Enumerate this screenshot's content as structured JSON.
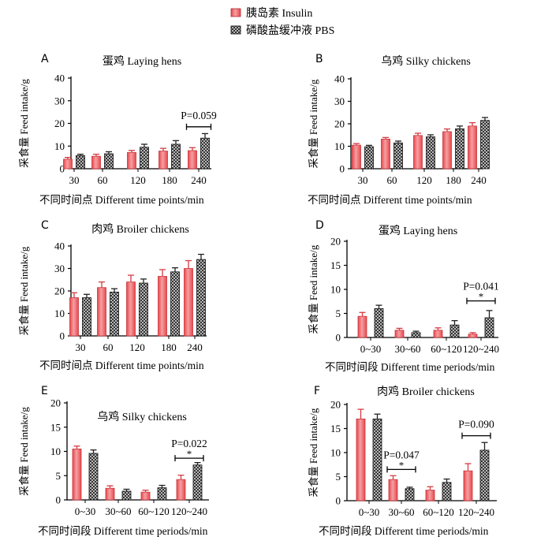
{
  "legend": {
    "items": [
      {
        "label": "胰岛素 Insulin",
        "swatch": "insulin"
      },
      {
        "label": "磷酸盐缓冲液 PBS",
        "swatch": "pbs"
      }
    ]
  },
  "colors": {
    "insulin": "#e8474d",
    "insulin_highlight": "#f4a0a2",
    "pbs": "#333333",
    "pbs_pattern": "#b8b8b8",
    "axis": "#000000"
  },
  "chart_data": [
    {
      "panel": "A",
      "type": "bar",
      "title": "蛋鸡 Laying hens",
      "ylabel": "采食量 Feed intake/g",
      "xlabel": "不同时间点 Different time points/min",
      "categories": [
        "30",
        "60",
        "120",
        "180",
        "240"
      ],
      "ylim": [
        0,
        40
      ],
      "yticks": [
        0,
        10,
        20,
        30,
        40
      ],
      "series": [
        {
          "name": "胰岛素 Insulin",
          "values": [
            4.2,
            5.5,
            7.2,
            7.8,
            8.0
          ],
          "errors": [
            0.8,
            0.9,
            0.9,
            1.2,
            1.3
          ]
        },
        {
          "name": "磷酸盐缓冲液 PBS",
          "values": [
            5.8,
            6.6,
            9.5,
            10.8,
            13.5
          ],
          "errors": [
            0.6,
            0.9,
            1.3,
            1.6,
            2.0
          ]
        }
      ],
      "annotations": [
        {
          "text": "P=0.059",
          "category_index": 4,
          "y": 18.5
        }
      ]
    },
    {
      "panel": "B",
      "type": "bar",
      "title": "乌鸡 Silky chickens",
      "ylabel": "采食量 Feed intake/g",
      "xlabel": "不同时间点 Different time points/min",
      "categories": [
        "30",
        "60",
        "120",
        "180",
        "240"
      ],
      "ylim": [
        0,
        40
      ],
      "yticks": [
        0,
        10,
        20,
        30,
        40
      ],
      "series": [
        {
          "name": "胰岛素 Insulin",
          "values": [
            10.5,
            13.2,
            14.8,
            16.5,
            19.0
          ],
          "errors": [
            0.7,
            0.7,
            1.0,
            1.2,
            1.5
          ]
        },
        {
          "name": "磷酸盐缓冲液 PBS",
          "values": [
            9.8,
            11.5,
            14.2,
            17.8,
            21.5
          ],
          "errors": [
            0.6,
            0.8,
            0.9,
            1.2,
            1.3
          ]
        }
      ],
      "annotations": []
    },
    {
      "panel": "C",
      "type": "bar",
      "title": "肉鸡 Broiler chickens",
      "ylabel": "采食量 Feed intake/g",
      "xlabel": "不同时间点 Different time points/min",
      "categories": [
        "30",
        "60",
        "120",
        "180",
        "240"
      ],
      "ylim": [
        0,
        40
      ],
      "yticks": [
        0,
        10,
        20,
        30,
        40
      ],
      "series": [
        {
          "name": "胰岛素 Insulin",
          "values": [
            17.0,
            21.5,
            24.0,
            26.5,
            30.0
          ],
          "errors": [
            2.2,
            2.5,
            3.0,
            3.0,
            3.5
          ]
        },
        {
          "name": "磷酸盐缓冲液 PBS",
          "values": [
            17.0,
            19.5,
            23.5,
            28.5,
            34.0
          ],
          "errors": [
            1.5,
            1.5,
            1.8,
            1.8,
            2.3
          ]
        }
      ],
      "annotations": []
    },
    {
      "panel": "D",
      "type": "bar",
      "title": "蛋鸡 Laying hens",
      "ylabel": "采食量 Feed intake/g",
      "xlabel": "不同时间段 Different time periods/min",
      "categories": [
        "0~30",
        "30~60",
        "60~120",
        "120~240"
      ],
      "ylim": [
        0,
        20
      ],
      "yticks": [
        0,
        5,
        10,
        15,
        20
      ],
      "series": [
        {
          "name": "胰岛素 Insulin",
          "values": [
            4.4,
            1.5,
            1.5,
            0.7
          ],
          "errors": [
            0.8,
            0.4,
            0.5,
            0.3
          ]
        },
        {
          "name": "磷酸盐缓冲液 PBS",
          "values": [
            6.0,
            1.0,
            2.6,
            4.1
          ],
          "errors": [
            0.7,
            0.3,
            0.9,
            1.5
          ]
        }
      ],
      "annotations": [
        {
          "text": "P=0.041",
          "category_index": 3,
          "y": 7.6,
          "star": true
        }
      ]
    },
    {
      "panel": "E",
      "type": "bar",
      "title": "乌鸡 Silky chickens",
      "ylabel": "采食量 Feed intake/g",
      "xlabel": "不同时间段 Different time periods/min",
      "categories": [
        "0~30",
        "30~60",
        "60~120",
        "120~240"
      ],
      "ylim": [
        0,
        20
      ],
      "yticks": [
        0,
        5,
        10,
        15,
        20
      ],
      "series": [
        {
          "name": "胰岛素 Insulin",
          "values": [
            10.5,
            2.4,
            1.6,
            4.2
          ],
          "errors": [
            0.6,
            0.5,
            0.4,
            0.9
          ]
        },
        {
          "name": "磷酸盐缓冲液 PBS",
          "values": [
            9.6,
            1.8,
            2.5,
            7.2
          ],
          "errors": [
            0.7,
            0.4,
            0.5,
            0.5
          ]
        }
      ],
      "annotations": [
        {
          "text": "P=0.022",
          "category_index": 3,
          "y": 8.6,
          "star": true
        }
      ]
    },
    {
      "panel": "F",
      "type": "bar",
      "title": "肉鸡 Broiler chickens",
      "ylabel": "采食量 Feed intake/g",
      "xlabel": "不同时间段 Different time periods/min",
      "categories": [
        "0~30",
        "30~60",
        "60~120",
        "120~240"
      ],
      "ylim": [
        0,
        20
      ],
      "yticks": [
        0,
        5,
        10,
        15,
        20
      ],
      "series": [
        {
          "name": "胰岛素 Insulin",
          "values": [
            17.0,
            4.4,
            2.2,
            6.2
          ],
          "errors": [
            2.0,
            0.8,
            0.7,
            1.5
          ]
        },
        {
          "name": "磷酸盐缓冲液 PBS",
          "values": [
            17.0,
            2.5,
            3.8,
            10.5
          ],
          "errors": [
            1.0,
            0.3,
            0.7,
            1.6
          ]
        }
      ],
      "annotations": [
        {
          "text": "P=0.047",
          "category_index": 1,
          "y": 6.5,
          "star": true
        },
        {
          "text": "P=0.090",
          "category_index": 3,
          "y": 13.5
        }
      ]
    }
  ]
}
